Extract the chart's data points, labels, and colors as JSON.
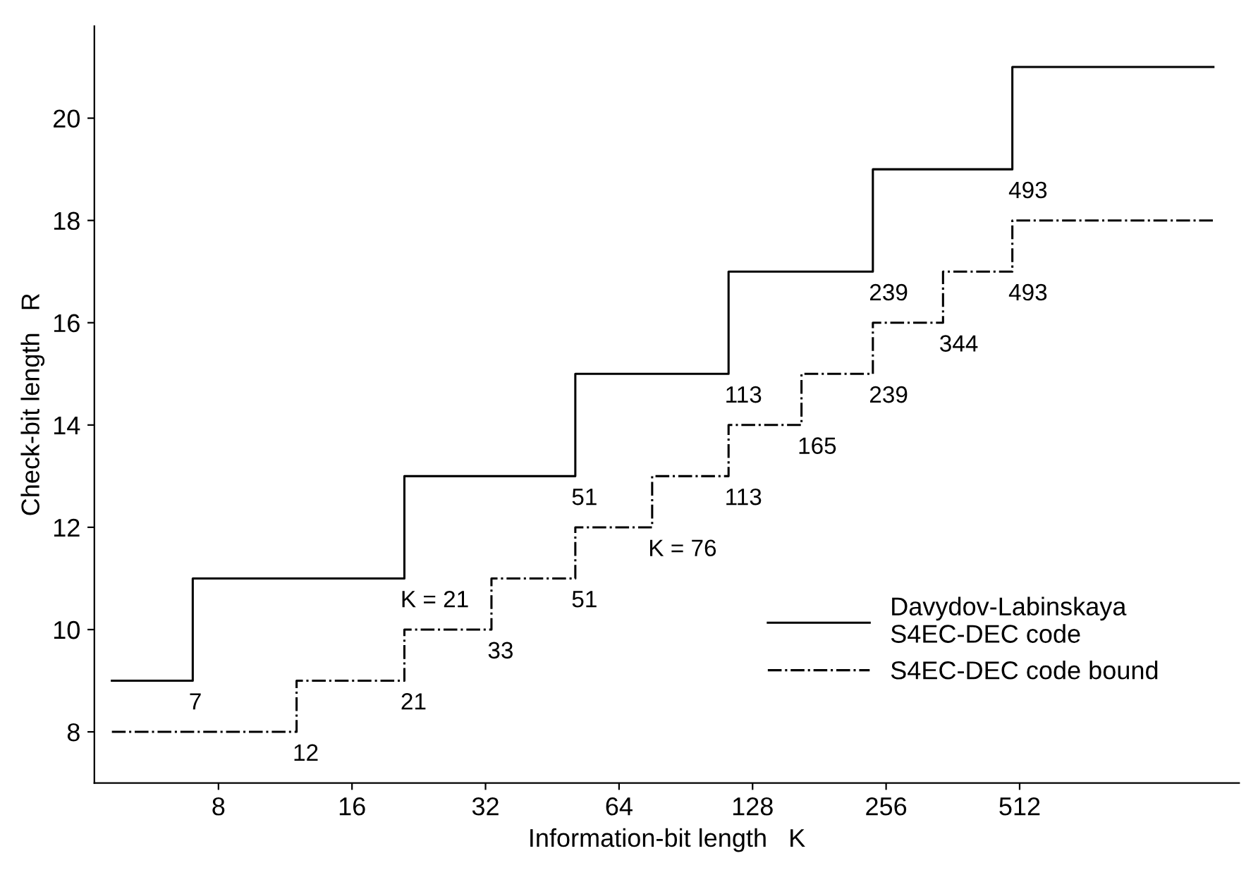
{
  "chart_data": {
    "type": "step",
    "xlabel": "Information-bit length   K",
    "ylabel": "Check-bit length   R",
    "log": "x",
    "xlim": [
      4.2,
      1600
    ],
    "xticks": [
      8,
      16,
      32,
      64,
      128,
      256,
      512
    ],
    "ylim": [
      7,
      21.8
    ],
    "yticks": [
      8,
      10,
      12,
      14,
      16,
      18,
      20
    ],
    "grid": false,
    "legend": "bottom right",
    "marker": "none",
    "series": [
      {
        "name": "Davydov-Labinskaya\nS4EC-DEC code",
        "color": "#000000",
        "line_style": "solid",
        "x": [
          4.6,
          7,
          21,
          51,
          113,
          239,
          493,
          1400
        ],
        "values": [
          9,
          11,
          13,
          15,
          17,
          19,
          21,
          21
        ]
      },
      {
        "name": "S4EC-DEC code bound",
        "color": "#000000",
        "line_style": "dashdot",
        "x": [
          4.6,
          12,
          21,
          33,
          51,
          76,
          113,
          165,
          239,
          344,
          493,
          1400
        ],
        "values": [
          8,
          9,
          10,
          11,
          12,
          13,
          14,
          15,
          16,
          17,
          18,
          18
        ]
      }
    ],
    "annotations": [
      {
        "text": "7",
        "x": 7,
        "y": 9
      },
      {
        "text": "K = 21",
        "x": 21,
        "y": 11
      },
      {
        "text": "51",
        "x": 51,
        "y": 13
      },
      {
        "text": "113",
        "x": 113,
        "y": 15
      },
      {
        "text": "239",
        "x": 239,
        "y": 17
      },
      {
        "text": "493",
        "x": 493,
        "y": 19
      },
      {
        "text": "12",
        "x": 12,
        "y": 8
      },
      {
        "text": "21",
        "x": 21,
        "y": 9
      },
      {
        "text": "33",
        "x": 33,
        "y": 10
      },
      {
        "text": "51",
        "x": 51,
        "y": 11
      },
      {
        "text": "K = 76",
        "x": 76,
        "y": 12
      },
      {
        "text": "113",
        "x": 113,
        "y": 13
      },
      {
        "text": "165",
        "x": 165,
        "y": 14
      },
      {
        "text": "239",
        "x": 239,
        "y": 15
      },
      {
        "text": "344",
        "x": 344,
        "y": 16
      },
      {
        "text": "493",
        "x": 493,
        "y": 17
      }
    ]
  }
}
